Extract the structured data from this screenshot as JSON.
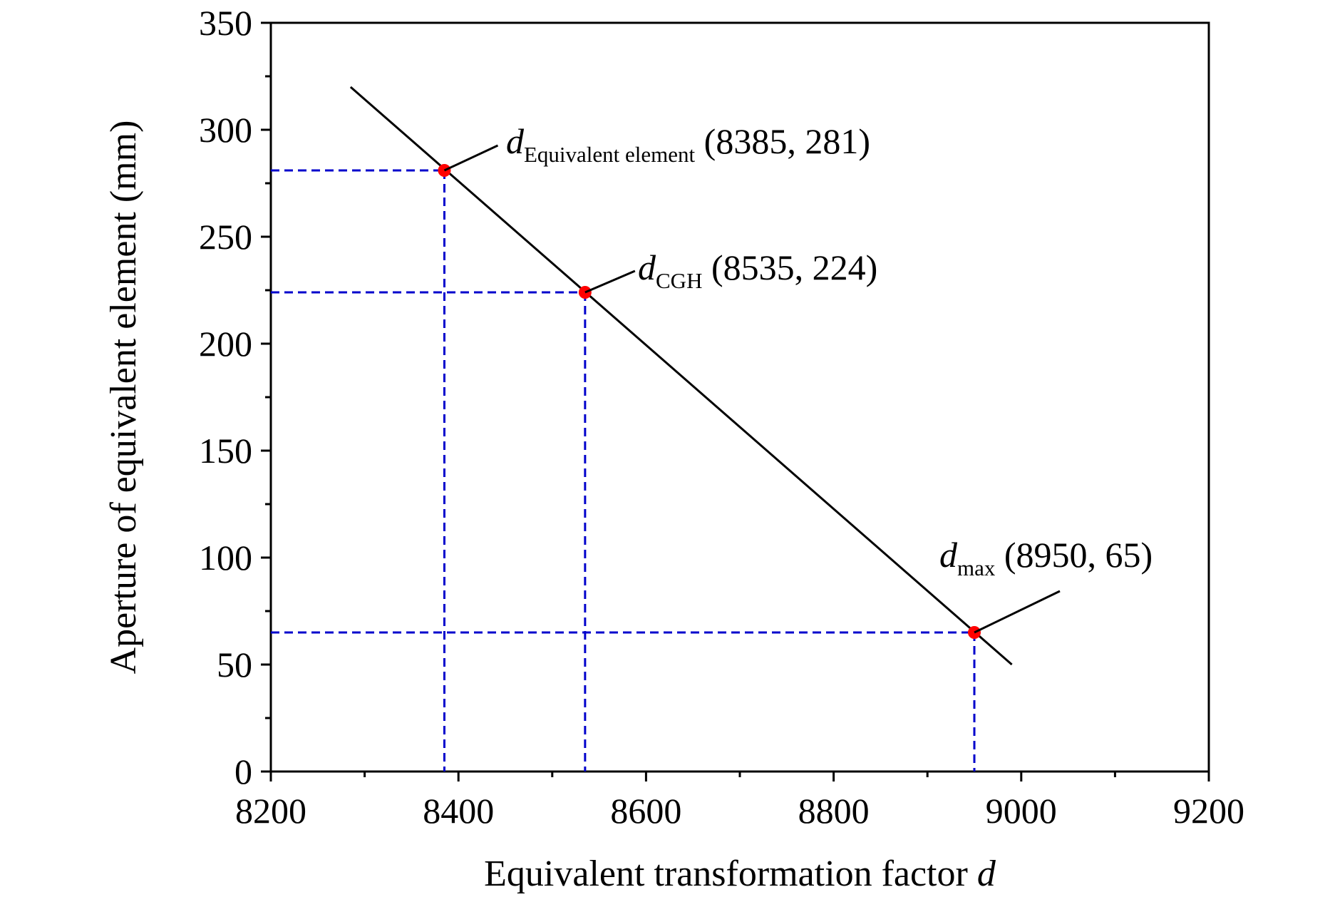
{
  "chart_data": {
    "type": "line",
    "title": "",
    "xlabel": {
      "text": "Equivalent transformation factor ",
      "var": "d"
    },
    "ylabel": "Aperture of equivalent element (mm)",
    "xlim": [
      8200,
      9200
    ],
    "ylim": [
      0,
      350
    ],
    "x_ticks": [
      "8200",
      "8400",
      "8600",
      "8800",
      "9000",
      "9200"
    ],
    "y_ticks": [
      "0",
      "50",
      "100",
      "150",
      "200",
      "250",
      "300",
      "350"
    ],
    "grid": false,
    "legend": "none",
    "series": [
      {
        "x": [
          8285,
          8990
        ],
        "y": [
          320,
          50
        ],
        "color": "#000000"
      }
    ],
    "highlighted_points": [
      {
        "x": 8385,
        "y": 281,
        "symbol": "d",
        "subscript": "Equivalent element",
        "coords": "(8385, 281)"
      },
      {
        "x": 8535,
        "y": 224,
        "symbol": "d",
        "subscript": "CGH",
        "coords": "(8535, 224)"
      },
      {
        "x": 8950,
        "y": 65,
        "symbol": "d",
        "subscript": "max",
        "coords": "(8950, 65)"
      }
    ],
    "point_color": "#ff0000",
    "guide_color": "#0000cc"
  }
}
